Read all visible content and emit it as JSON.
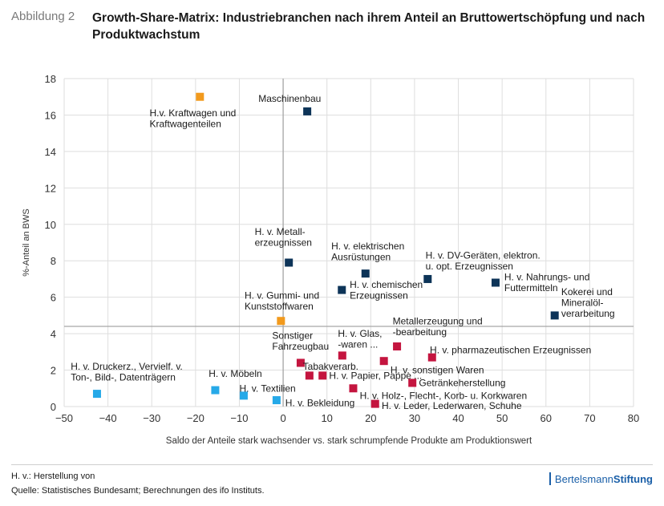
{
  "header": {
    "figure_label": "Abbildung 2",
    "title": "Growth-Share-Matrix: Industriebranchen nach ihrem Anteil an Bruttowertschöpfung und nach Produktwachstum"
  },
  "chart_data": {
    "type": "scatter",
    "title": "Growth-Share-Matrix: Industriebranchen nach ihrem Anteil an Bruttowertschöpfung und nach Produktwachstum",
    "xlabel": "Saldo der Anteile stark wachsender vs. stark schrumpfende Produkte am Produktionswert",
    "ylabel": "%-Anteil an BWS",
    "xlim": [
      -50,
      80
    ],
    "ylim": [
      0,
      18
    ],
    "xticks": [
      -50,
      -40,
      -30,
      -20,
      -10,
      0,
      10,
      20,
      30,
      40,
      50,
      60,
      70,
      80
    ],
    "yticks": [
      0,
      2,
      4,
      6,
      8,
      10,
      12,
      14,
      16,
      18
    ],
    "tick_labels_x": [
      "−50",
      "−40",
      "−30",
      "−20",
      "−10",
      "0",
      "10",
      "20",
      "30",
      "40",
      "50",
      "60",
      "70",
      "80"
    ],
    "tick_labels_y": [
      "0",
      "2",
      "4",
      "6",
      "8",
      "10",
      "12",
      "14",
      "16",
      "18"
    ],
    "reference_lines": {
      "x": 0,
      "y": 4.4
    },
    "grid": true,
    "colors": {
      "navy": "#0d3458",
      "orange": "#f29a1d",
      "crimson": "#c4153f",
      "lightblue": "#26a9e8",
      "grid": "#dedede",
      "refline": "#a6a6a6"
    },
    "points": [
      {
        "label": [
          "H.v. Kraftwagen und",
          "Kraftwagenteilen"
        ],
        "x": -19,
        "y": 17.0,
        "color": "orange",
        "anchor": "start",
        "lx": -30.5,
        "ly": 15.8
      },
      {
        "label": [
          "Maschinenbau"
        ],
        "x": 5.5,
        "y": 16.2,
        "color": "navy",
        "anchor": "middle",
        "lx": 1.5,
        "ly": 16.9
      },
      {
        "label": [
          "H. v. Metall-",
          "erzeugnissen"
        ],
        "x": 1.3,
        "y": 7.9,
        "color": "navy",
        "anchor": "start",
        "lx": -6.5,
        "ly": 9.3
      },
      {
        "label": [
          "H. v. elektrischen",
          "Ausrüstungen"
        ],
        "x": 18.8,
        "y": 7.3,
        "color": "navy",
        "anchor": "start",
        "lx": 11.0,
        "ly": 8.5
      },
      {
        "label": [
          "H. v. chemischen",
          "Erzeugnissen"
        ],
        "x": 13.4,
        "y": 6.4,
        "color": "navy",
        "anchor": "start",
        "lx": 15.2,
        "ly": 6.4
      },
      {
        "label": [
          "H. v. DV-Geräten, elektron.",
          "u. opt. Erzeugnissen"
        ],
        "x": 33.0,
        "y": 7.0,
        "color": "navy",
        "anchor": "start",
        "lx": 32.5,
        "ly": 8.0
      },
      {
        "label": [
          "H. v. Nahrungs- und",
          "Futtermitteln"
        ],
        "x": 48.5,
        "y": 6.8,
        "color": "navy",
        "anchor": "start",
        "lx": 50.5,
        "ly": 6.8
      },
      {
        "label": [
          "Kokerei und",
          "Mineralöl-",
          "verarbeitung"
        ],
        "x": 62.0,
        "y": 5.0,
        "color": "navy",
        "anchor": "start",
        "lx": 63.5,
        "ly": 5.7
      },
      {
        "label": [
          "H. v. Gummi- und",
          "Kunststoffwaren"
        ],
        "x": -0.5,
        "y": 4.7,
        "color": "orange",
        "anchor": "start",
        "lx": -8.8,
        "ly": 5.8
      },
      {
        "label": [
          "Sonstiger",
          "Fahrzeugbau"
        ],
        "x": 4.0,
        "y": 2.4,
        "color": "crimson",
        "anchor": "start",
        "lx": -2.5,
        "ly": 3.6
      },
      {
        "label": [
          "Tabakverarb."
        ],
        "x": 6.0,
        "y": 1.7,
        "color": "crimson",
        "anchor": "start",
        "lx": 4.5,
        "ly": 2.2
      },
      {
        "label": [
          "H. v. Papier, Pappe ..."
        ],
        "x": 9.0,
        "y": 1.7,
        "color": "crimson",
        "anchor": "start",
        "lx": 10.5,
        "ly": 1.7
      },
      {
        "label": [
          "H. v. Glas,",
          "-waren ..."
        ],
        "x": 13.5,
        "y": 2.8,
        "color": "crimson",
        "anchor": "start",
        "lx": 12.5,
        "ly": 3.7
      },
      {
        "label": [
          "Metallerzeugung und",
          "-bearbeitung"
        ],
        "x": 26.0,
        "y": 3.3,
        "color": "crimson",
        "anchor": "start",
        "lx": 25.0,
        "ly": 4.4
      },
      {
        "label": [
          "H. v. sonstigen Waren"
        ],
        "x": 23.0,
        "y": 2.5,
        "color": "crimson",
        "anchor": "start",
        "lx": 24.5,
        "ly": 2.0
      },
      {
        "label": [
          "H. v. pharmazeutischen Erzeugnissen"
        ],
        "x": 34.0,
        "y": 2.7,
        "color": "crimson",
        "anchor": "start",
        "lx": 33.5,
        "ly": 3.1
      },
      {
        "label": [
          "Getränkeherstellung"
        ],
        "x": 29.5,
        "y": 1.3,
        "color": "crimson",
        "anchor": "start",
        "lx": 31.0,
        "ly": 1.3
      },
      {
        "label": [
          "H. v. Holz-, Flecht-, Korb- u. Korkwaren"
        ],
        "x": 16.0,
        "y": 1.0,
        "color": "crimson",
        "anchor": "start",
        "lx": 17.5,
        "ly": 0.6
      },
      {
        "label": [
          "H. v. Leder, Lederwaren, Schuhe"
        ],
        "x": 21.0,
        "y": 0.15,
        "color": "crimson",
        "anchor": "start",
        "lx": 22.5,
        "ly": 0.05
      },
      {
        "label": [
          "H. v. Druckerz., Vervielf. v.",
          "Ton-, Bild-, Datenträgern"
        ],
        "x": -42.5,
        "y": 0.7,
        "color": "lightblue",
        "anchor": "start",
        "lx": -48.5,
        "ly": 1.9
      },
      {
        "label": [
          "H. v. Möbeln"
        ],
        "x": -15.5,
        "y": 0.9,
        "color": "lightblue",
        "anchor": "start",
        "lx": -17.0,
        "ly": 1.8
      },
      {
        "label": [
          "H. v. Textilien"
        ],
        "x": -9.0,
        "y": 0.6,
        "color": "lightblue",
        "anchor": "start",
        "lx": -10.0,
        "ly": 1.0
      },
      {
        "label": [
          "H. v. Bekleidung"
        ],
        "x": -1.5,
        "y": 0.35,
        "color": "lightblue",
        "anchor": "start",
        "lx": 0.5,
        "ly": 0.2
      }
    ]
  },
  "footer": {
    "note": "H. v.: Herstellung von",
    "source": "Quelle: Statistisches Bundesamt; Berechnungen des ifo Instituts.",
    "brand_part1": "Bertelsmann",
    "brand_part2": "Stiftung"
  }
}
